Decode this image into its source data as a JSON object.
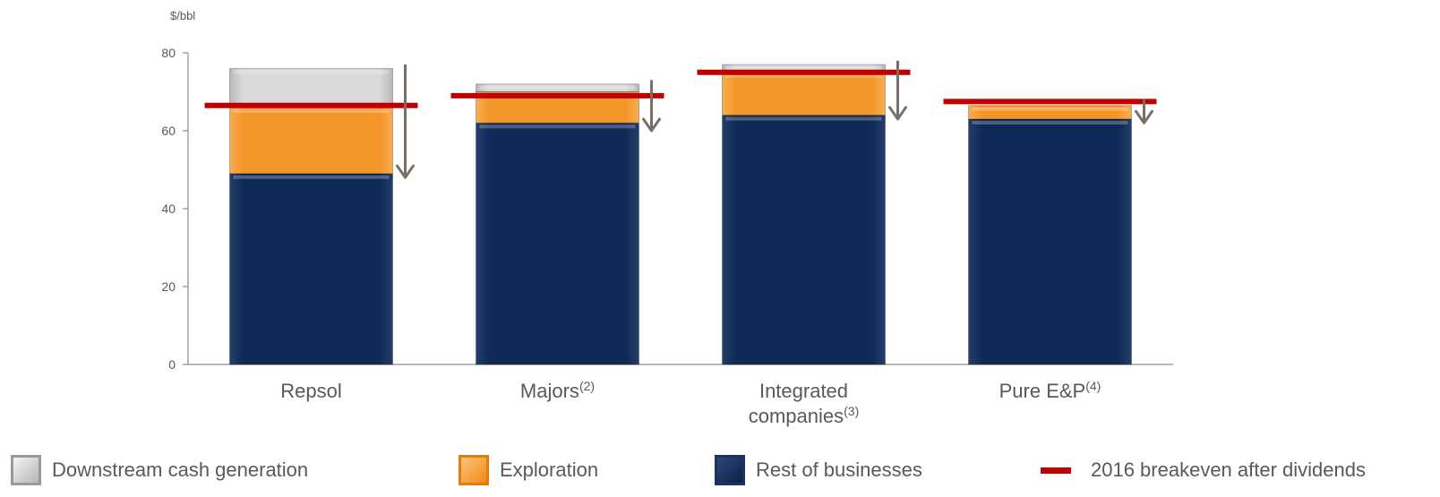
{
  "chart_data": {
    "type": "bar",
    "stacked": true,
    "ylabel": "$/bbl",
    "ylim": [
      0,
      80
    ],
    "yticks": [
      0,
      20,
      40,
      60,
      80
    ],
    "grid": false,
    "legend_position": "bottom",
    "categories": [
      {
        "name": "Repsol",
        "sup": ""
      },
      {
        "name": "Majors",
        "sup": "(2)"
      },
      {
        "name": "Integrated companies",
        "line1": "Integrated",
        "line2": "companies",
        "sup": "(3)"
      },
      {
        "name": "Pure E&P",
        "sup": "(4)"
      }
    ],
    "series": [
      {
        "name": "Rest of businesses",
        "color": "#0d2550",
        "values": [
          49,
          62,
          64,
          63
        ]
      },
      {
        "name": "Exploration",
        "color": "#f4942a",
        "values": [
          17,
          8,
          11,
          3.5
        ]
      },
      {
        "name": "Downstream cash generation",
        "color": "#c8c8c8",
        "values": [
          10,
          2,
          2,
          0
        ]
      }
    ],
    "breakeven": {
      "name": "2016 breakeven after dividends",
      "color": "#c00000",
      "values": [
        66.5,
        69,
        75,
        67.5
      ]
    },
    "arrows": {
      "color": "#7a6f66",
      "from": [
        77,
        73,
        78,
        68
      ],
      "to": [
        48,
        60,
        63,
        62
      ]
    }
  },
  "legend": {
    "items": [
      {
        "label": "Downstream cash generation",
        "color": "#c8c8c8"
      },
      {
        "label": "Exploration",
        "color": "#f4942a"
      },
      {
        "label": "Rest of businesses",
        "color": "#0d2550"
      },
      {
        "label": "2016 breakeven after dividends",
        "color": "#c00000"
      }
    ]
  }
}
